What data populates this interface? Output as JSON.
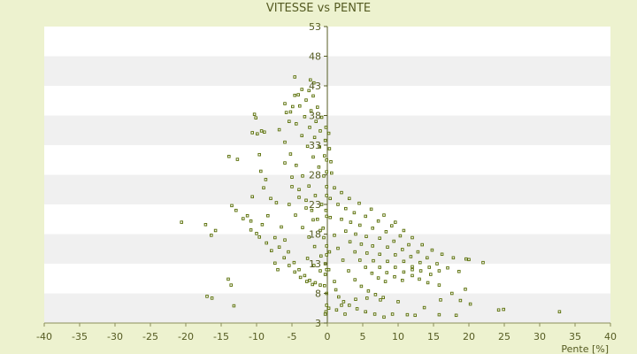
{
  "chart_data": {
    "type": "scatter",
    "title": "VITESSE vs PENTE",
    "xlabel": "Pente [%]",
    "ylabel": "",
    "xlim": [
      -40,
      40
    ],
    "ylim": [
      3,
      53
    ],
    "x_ticks": [
      "-40",
      "-35",
      "-30",
      "-25",
      "-20",
      "-15",
      "-10",
      "-5",
      "0",
      "5",
      "10",
      "15",
      "20",
      "25",
      "30",
      "35",
      "40"
    ],
    "y_ticks": [
      "3",
      "8",
      "13",
      "18",
      "23",
      "28",
      "33",
      "38",
      "43",
      "48",
      "53"
    ],
    "y_tick_values": [
      3,
      8,
      13,
      18,
      23,
      28,
      33,
      38,
      43,
      48,
      53
    ],
    "x_tick_values": [
      -40,
      -35,
      -30,
      -25,
      -20,
      -15,
      -10,
      -5,
      0,
      5,
      10,
      15,
      20,
      25,
      30,
      35,
      40
    ],
    "grid": true,
    "colors": {
      "marker": "#556b00",
      "band": "#f0f0f0",
      "plot_bg": "#ffffff",
      "page_bg": "#edf2cf"
    },
    "series": [
      {
        "values": [
          [
            -20.6,
            20.0
          ],
          [
            -17.2,
            19.6
          ],
          [
            -15.8,
            18.6
          ],
          [
            -16.4,
            17.8
          ],
          [
            -14.0,
            10.4
          ],
          [
            -13.6,
            9.4
          ],
          [
            -17.0,
            7.5
          ],
          [
            -16.3,
            7.2
          ],
          [
            -13.2,
            5.9
          ],
          [
            -13.9,
            31.1
          ],
          [
            -13.5,
            22.8
          ],
          [
            -12.9,
            22.0
          ],
          [
            -12.7,
            30.6
          ],
          [
            -11.9,
            20.6
          ],
          [
            -11.3,
            21.1
          ],
          [
            -10.6,
            24.3
          ],
          [
            -10.3,
            38.2
          ],
          [
            -10.1,
            37.6
          ],
          [
            -10.6,
            35.1
          ],
          [
            -9.9,
            34.9
          ],
          [
            -9.3,
            35.4
          ],
          [
            -8.9,
            35.2
          ],
          [
            -9.6,
            31.4
          ],
          [
            -9.0,
            25.8
          ],
          [
            -9.4,
            28.6
          ],
          [
            -8.7,
            27.2
          ],
          [
            -10.8,
            20.2
          ],
          [
            -10.0,
            18.1
          ],
          [
            -9.2,
            19.6
          ],
          [
            -8.6,
            16.5
          ],
          [
            -8.0,
            24.0
          ],
          [
            -8.4,
            21.1
          ],
          [
            -7.9,
            15.2
          ],
          [
            -7.4,
            13.1
          ],
          [
            -7.2,
            23.3
          ],
          [
            -10.8,
            18.7
          ],
          [
            -9.6,
            17.5
          ],
          [
            -7.0,
            12.0
          ],
          [
            -6.0,
            40.0
          ],
          [
            -5.8,
            38.5
          ],
          [
            -5.4,
            37.0
          ],
          [
            -4.9,
            39.5
          ],
          [
            -3.6,
            42.4
          ],
          [
            -4.1,
            41.5
          ],
          [
            -4.6,
            44.5
          ],
          [
            -2.4,
            44.0
          ],
          [
            -2.6,
            42.2
          ],
          [
            -1.9,
            43.5
          ],
          [
            -5.0,
            26.0
          ],
          [
            -4.0,
            24.2
          ],
          [
            -3.0,
            22.4
          ],
          [
            -2.0,
            20.4
          ],
          [
            -1.0,
            18.6
          ],
          [
            -0.5,
            17.4
          ],
          [
            -6.5,
            19.2
          ],
          [
            -6.0,
            17.0
          ],
          [
            -5.5,
            15.0
          ],
          [
            -4.7,
            13.2
          ],
          [
            -4.0,
            12.0
          ],
          [
            -3.2,
            11.0
          ],
          [
            -2.5,
            10.2
          ],
          [
            -1.7,
            9.8
          ],
          [
            -1.0,
            9.4
          ],
          [
            -0.4,
            9.3
          ],
          [
            -7.4,
            17.4
          ],
          [
            -6.8,
            15.8
          ],
          [
            -6.1,
            14.0
          ],
          [
            -5.4,
            12.7
          ],
          [
            -4.6,
            11.6
          ],
          [
            -3.8,
            10.7
          ],
          [
            -2.9,
            10.0
          ],
          [
            -2.1,
            9.5
          ],
          [
            -0.2,
            4.9
          ],
          [
            -0.3,
            4.5
          ],
          [
            -2.8,
            13.9
          ],
          [
            -1.9,
            12.7
          ],
          [
            -1.0,
            11.8
          ],
          [
            -0.3,
            11.2
          ],
          [
            -5.4,
            23.0
          ],
          [
            -4.5,
            21.2
          ],
          [
            -3.5,
            19.1
          ],
          [
            -2.6,
            17.5
          ],
          [
            -1.8,
            15.9
          ],
          [
            -0.9,
            14.3
          ],
          [
            -0.3,
            13.0
          ],
          [
            -6.0,
            30.0
          ],
          [
            -5.0,
            27.6
          ],
          [
            -4.0,
            25.5
          ],
          [
            -3.0,
            23.7
          ],
          [
            -2.2,
            22.0
          ],
          [
            -1.4,
            20.5
          ],
          [
            -0.6,
            19.0
          ],
          [
            -6.8,
            35.6
          ],
          [
            -6.0,
            33.5
          ],
          [
            -5.2,
            31.5
          ],
          [
            -4.4,
            29.6
          ],
          [
            -3.5,
            27.8
          ],
          [
            -2.6,
            26.1
          ],
          [
            -1.7,
            24.5
          ],
          [
            -0.8,
            23.0
          ],
          [
            -0.2,
            22.0
          ],
          [
            -5.2,
            38.6
          ],
          [
            -4.4,
            36.6
          ],
          [
            -3.6,
            34.6
          ],
          [
            -2.8,
            32.8
          ],
          [
            -2.0,
            31.0
          ],
          [
            -1.2,
            29.3
          ],
          [
            -0.5,
            27.8
          ],
          [
            -4.6,
            41.4
          ],
          [
            -3.9,
            39.6
          ],
          [
            -3.2,
            37.8
          ],
          [
            -2.5,
            36.0
          ],
          [
            -1.8,
            34.3
          ],
          [
            -1.1,
            32.7
          ],
          [
            -0.4,
            31.2
          ],
          [
            -3.0,
            40.6
          ],
          [
            -2.3,
            38.8
          ],
          [
            -1.6,
            37.0
          ],
          [
            -1.0,
            35.4
          ],
          [
            -0.3,
            33.8
          ],
          [
            -2.0,
            41.3
          ],
          [
            -1.4,
            39.4
          ],
          [
            -0.8,
            37.7
          ],
          [
            -0.2,
            36.0
          ],
          [
            -0.1,
            26.0
          ],
          [
            -0.1,
            21.0
          ],
          [
            -0.1,
            16.0
          ],
          [
            -0.1,
            8.0
          ],
          [
            -0.1,
            6.0
          ],
          [
            -0.1,
            28.5
          ],
          [
            -0.1,
            30.5
          ],
          [
            -0.1,
            24.5
          ],
          [
            -0.1,
            14.5
          ],
          [
            -0.1,
            12.0
          ],
          [
            1.0,
            25.8
          ],
          [
            1.5,
            23.0
          ],
          [
            2.0,
            20.5
          ],
          [
            2.6,
            18.5
          ],
          [
            3.2,
            16.7
          ],
          [
            3.9,
            15.0
          ],
          [
            4.6,
            13.6
          ],
          [
            5.4,
            12.4
          ],
          [
            6.3,
            11.4
          ],
          [
            7.2,
            10.6
          ],
          [
            8.2,
            10.0
          ],
          [
            2.0,
            25.0
          ],
          [
            2.6,
            22.3
          ],
          [
            3.3,
            20.0
          ],
          [
            4.0,
            18.0
          ],
          [
            4.8,
            16.3
          ],
          [
            5.6,
            14.8
          ],
          [
            6.5,
            13.5
          ],
          [
            7.4,
            12.4
          ],
          [
            8.4,
            11.5
          ],
          [
            9.5,
            10.8
          ],
          [
            10.6,
            10.2
          ],
          [
            3.1,
            24.0
          ],
          [
            3.8,
            21.6
          ],
          [
            4.6,
            19.5
          ],
          [
            5.5,
            17.6
          ],
          [
            6.4,
            16.0
          ],
          [
            7.4,
            14.6
          ],
          [
            8.5,
            13.4
          ],
          [
            9.6,
            12.4
          ],
          [
            10.8,
            11.6
          ],
          [
            12.0,
            11.0
          ],
          [
            4.5,
            23.2
          ],
          [
            5.4,
            21.0
          ],
          [
            6.4,
            19.0
          ],
          [
            7.4,
            17.3
          ],
          [
            8.5,
            15.8
          ],
          [
            9.6,
            14.5
          ],
          [
            10.8,
            13.4
          ],
          [
            12.0,
            12.5
          ],
          [
            13.2,
            11.8
          ],
          [
            14.6,
            11.2
          ],
          [
            6.2,
            22.2
          ],
          [
            7.2,
            20.2
          ],
          [
            8.3,
            18.4
          ],
          [
            9.4,
            16.8
          ],
          [
            10.6,
            15.4
          ],
          [
            11.8,
            14.2
          ],
          [
            13.1,
            13.2
          ],
          [
            14.4,
            12.4
          ],
          [
            15.8,
            11.8
          ],
          [
            8.0,
            21.2
          ],
          [
            9.1,
            19.4
          ],
          [
            10.3,
            17.7
          ],
          [
            11.5,
            16.2
          ],
          [
            12.8,
            15.0
          ],
          [
            14.1,
            14.0
          ],
          [
            15.5,
            13.0
          ],
          [
            17.0,
            12.3
          ],
          [
            18.6,
            11.7
          ],
          [
            1.0,
            17.8
          ],
          [
            1.5,
            15.6
          ],
          [
            2.2,
            13.6
          ],
          [
            3.0,
            11.8
          ],
          [
            3.9,
            10.3
          ],
          [
            4.8,
            9.2
          ],
          [
            5.8,
            8.4
          ],
          [
            6.8,
            7.8
          ],
          [
            7.9,
            7.3
          ],
          [
            1.0,
            10.0
          ],
          [
            1.2,
            8.6
          ],
          [
            1.6,
            7.4
          ],
          [
            2.3,
            6.6
          ],
          [
            3.1,
            6.0
          ],
          [
            4.2,
            5.4
          ],
          [
            5.4,
            4.9
          ],
          [
            6.7,
            4.5
          ],
          [
            8.0,
            4.0
          ],
          [
            0.5,
            30.2
          ],
          [
            0.6,
            28.3
          ],
          [
            0.3,
            32.4
          ],
          [
            0.2,
            35.0
          ],
          [
            0.4,
            24.0
          ],
          [
            0.4,
            20.8
          ],
          [
            0.3,
            15.0
          ],
          [
            0.2,
            12.0
          ],
          [
            0.2,
            5.5
          ],
          [
            9.6,
            20.0
          ],
          [
            10.8,
            18.6
          ],
          [
            12.0,
            17.4
          ],
          [
            13.4,
            16.2
          ],
          [
            14.8,
            15.3
          ],
          [
            16.2,
            14.6
          ],
          [
            17.8,
            14.0
          ],
          [
            19.6,
            13.8
          ],
          [
            20.0,
            13.7
          ],
          [
            22.0,
            13.2
          ],
          [
            12.0,
            12.0
          ],
          [
            13.0,
            10.4
          ],
          [
            14.2,
            9.8
          ],
          [
            15.8,
            9.4
          ],
          [
            17.6,
            8.0
          ],
          [
            19.5,
            8.7
          ],
          [
            20.2,
            6.2
          ],
          [
            16.0,
            6.9
          ],
          [
            18.8,
            6.8
          ],
          [
            1.3,
            5.2
          ],
          [
            2.0,
            6.0
          ],
          [
            2.5,
            4.5
          ],
          [
            4.0,
            7.0
          ],
          [
            5.6,
            7.2
          ],
          [
            7.5,
            6.9
          ],
          [
            10.0,
            6.6
          ],
          [
            13.7,
            5.6
          ],
          [
            15.8,
            4.4
          ],
          [
            18.2,
            4.3
          ],
          [
            11.3,
            4.4
          ],
          [
            9.2,
            4.5
          ],
          [
            12.4,
            4.3
          ],
          [
            24.2,
            5.2
          ],
          [
            24.9,
            5.3
          ],
          [
            32.8,
            4.9
          ]
        ]
      }
    ]
  }
}
